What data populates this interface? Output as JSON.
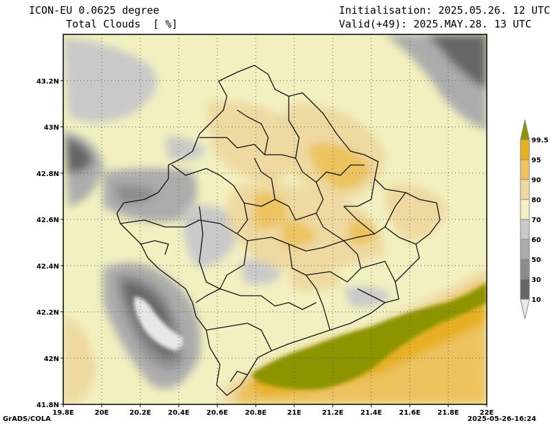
{
  "header": {
    "model": "ICON-EU 0.0625 degree",
    "field": "Total Clouds  [ %]",
    "init": "Initialisation: 2025.05.26. 12 UTC",
    "valid": "Valid(+49): 2025.MAY.28. 13 UTC"
  },
  "axes": {
    "lon_ticks": [
      "19.8E",
      "20E",
      "20.2E",
      "20.4E",
      "20.6E",
      "20.8E",
      "21E",
      "21.2E",
      "21.4E",
      "21.6E",
      "21.8E",
      "22E"
    ],
    "lat_ticks": [
      "43.2N",
      "43N",
      "42.8N",
      "42.6N",
      "42.4N",
      "42.2N",
      "42N",
      "41.8N"
    ],
    "lon_range": [
      19.8,
      22.0
    ],
    "lat_range": [
      41.8,
      43.4
    ]
  },
  "legend": {
    "levels": [
      "99.5",
      "95",
      "90",
      "80",
      "70",
      "60",
      "50",
      "30",
      "10"
    ],
    "colors": [
      "#8c9400",
      "#e6b020",
      "#ecc35e",
      "#eed9a0",
      "#f2f0c0",
      "#c9c9c9",
      "#acacac",
      "#8c8c8c",
      "#666666",
      "#e8e8e8"
    ]
  },
  "footer": {
    "left": "GrADS/COLA",
    "right": "2025-05-26-16:24"
  }
}
